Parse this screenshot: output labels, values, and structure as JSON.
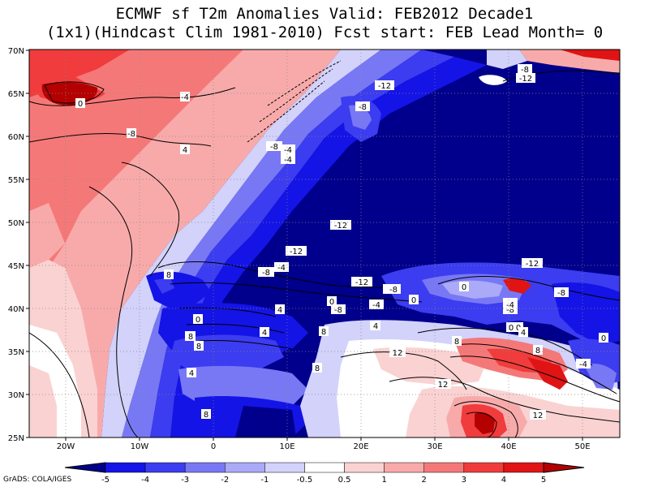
{
  "title": {
    "line1": "ECMWF sf T2m Anomalies Valid: FEB2012 Decade1",
    "line2": "(1x1)(Hindcast Clim 1981-2010) Fcst start: FEB  Lead Month= 0"
  },
  "map": {
    "lon_range": [
      -25,
      55
    ],
    "lat_range": [
      25,
      70
    ],
    "lon_ticks": [
      "20W",
      "10W",
      "0",
      "10E",
      "20E",
      "30E",
      "40E",
      "50E"
    ],
    "lat_ticks": [
      "25N",
      "30N",
      "35N",
      "40N",
      "45N",
      "50N",
      "55N",
      "60N",
      "65N",
      "70N"
    ],
    "contour_labels": [
      "0",
      "-4",
      "-8",
      "4",
      "8",
      "-8",
      "-4",
      "-4",
      "-12",
      "-8",
      "-12",
      "-8",
      "-12",
      "-4",
      "-8",
      "4",
      "0",
      "4",
      "8",
      "0",
      "8",
      "8",
      "4",
      "4",
      "8",
      "-12",
      "-8",
      "-4",
      "-8",
      "0",
      "4",
      "0",
      "12",
      "8",
      "12",
      "0",
      "-12",
      "0",
      "-4",
      "-8",
      "-8",
      "-4",
      "4",
      "8",
      "-4",
      "0",
      "12",
      "-12",
      "-8",
      "8",
      "8",
      "0"
    ]
  },
  "colorbar": {
    "labels": [
      "-5",
      "-4",
      "-3",
      "-2",
      "-1",
      "-0.5",
      "0.5",
      "1",
      "2",
      "3",
      "4",
      "5"
    ],
    "colors": [
      "#00008c",
      "#1414e6",
      "#3c3cf0",
      "#7878f5",
      "#aaaaf8",
      "#d2d2fa",
      "#ffffff",
      "#fad2d2",
      "#f8aaaa",
      "#f57878",
      "#f03c3c",
      "#e01414",
      "#b40000"
    ]
  },
  "footer": "GrADS: COLA/IGES"
}
